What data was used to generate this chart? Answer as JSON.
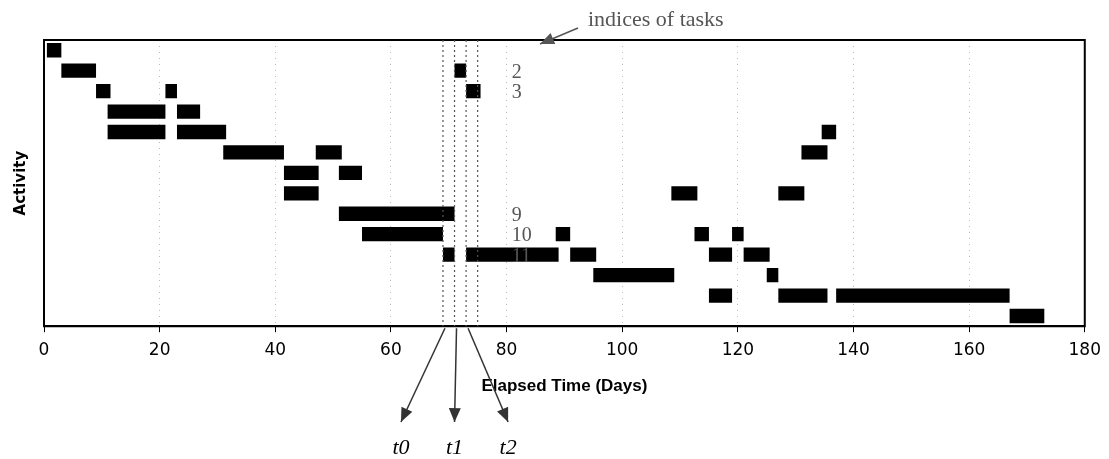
{
  "chart_data": {
    "type": "bar",
    "orientation": "horizontal",
    "xlabel": "Elapsed Time (Days)",
    "ylabel": "Activity",
    "categories": [
      null,
      "2",
      "3",
      null,
      null,
      null,
      null,
      null,
      "9",
      "10",
      "11",
      null,
      null,
      null
    ],
    "series": [
      {
        "color": "#000000",
        "base": [
          0.5,
          3,
          9,
          11,
          11,
          31,
          41.5,
          41.5,
          51,
          55,
          69,
          95,
          115,
          167
        ],
        "values": [
          2.5,
          6,
          2.5,
          10,
          10,
          10.5,
          6,
          6,
          20,
          14,
          2,
          14,
          4,
          6
        ]
      },
      {
        "color": "#000000",
        "base": [
          null,
          71,
          21,
          23,
          23,
          47,
          51,
          108.5,
          null,
          88.5,
          73,
          125,
          127,
          null
        ],
        "values": [
          null,
          2,
          2,
          4,
          8.5,
          4.5,
          4,
          4.5,
          null,
          2.5,
          16,
          2,
          8.5,
          null
        ]
      },
      {
        "color": "#000000",
        "base": [
          null,
          null,
          73,
          null,
          134.5,
          131,
          null,
          127,
          null,
          112.5,
          91,
          null,
          137,
          null
        ],
        "values": [
          null,
          null,
          2.5,
          null,
          2.5,
          4.5,
          null,
          4.5,
          null,
          2.5,
          4.5,
          null,
          30,
          null
        ]
      },
      {
        "color": "#000000",
        "base": [
          null,
          null,
          null,
          null,
          null,
          null,
          null,
          null,
          null,
          119,
          115,
          null,
          null,
          null
        ],
        "values": [
          null,
          null,
          null,
          null,
          null,
          null,
          null,
          null,
          null,
          2,
          4,
          null,
          null,
          null
        ]
      },
      {
        "color": "#000000",
        "base": [
          null,
          null,
          null,
          null,
          null,
          null,
          null,
          null,
          null,
          null,
          121,
          null,
          null,
          null
        ],
        "values": [
          null,
          null,
          null,
          null,
          null,
          null,
          null,
          null,
          null,
          null,
          4.5,
          null,
          null,
          null
        ]
      }
    ],
    "xlim": [
      0,
      180
    ],
    "xticks": [
      0,
      20,
      40,
      60,
      80,
      100,
      120,
      140,
      160,
      180
    ],
    "grid": "x",
    "legend": false,
    "ref_lines": [
      {
        "axis": "x",
        "value": 69,
        "label": "t0",
        "color": "#555555",
        "line_style": "dotted"
      },
      {
        "axis": "x",
        "value": 71,
        "label": "t1",
        "color": "#555555",
        "line_style": "dotted"
      },
      {
        "axis": "x",
        "value": 73,
        "label": "t2",
        "color": "#555555",
        "line_style": "dotted"
      },
      {
        "axis": "x",
        "value": 75,
        "label": null,
        "color": "#555555",
        "line_style": "dotted"
      }
    ],
    "annotations": [
      "indices of tasks"
    ]
  }
}
